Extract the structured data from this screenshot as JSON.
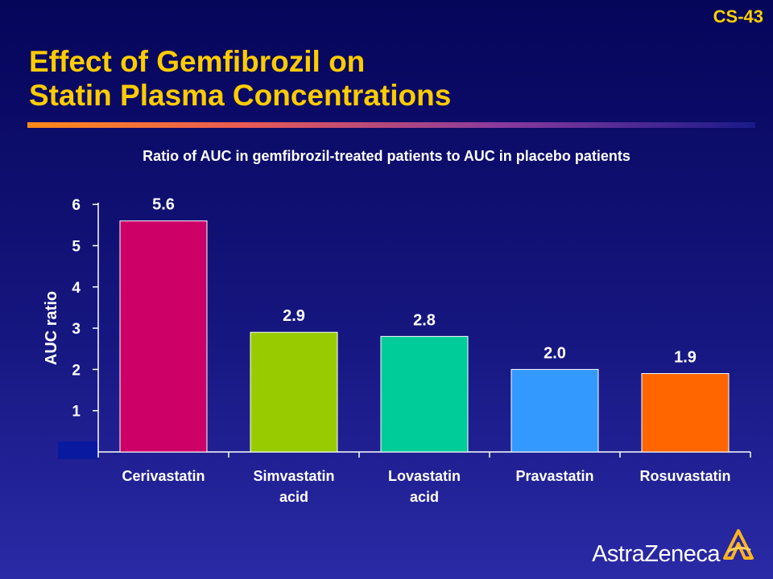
{
  "slide_number": "CS-43",
  "title_lines": [
    "Effect of Gemfibrozil on",
    "Statin Plasma Concentrations"
  ],
  "subtitle": "Ratio of AUC in gemfibrozil-treated patients to AUC in placebo patients",
  "logo_text": "AstraZeneca",
  "colors": {
    "title": "#ffcc00",
    "background": "#0a0a6e"
  },
  "chart_data": {
    "type": "bar",
    "categories": [
      [
        "Cerivastatin"
      ],
      [
        "Simvastatin",
        "acid"
      ],
      [
        "Lovastatin",
        "acid"
      ],
      [
        "Pravastatin"
      ],
      [
        "Rosuvastatin"
      ]
    ],
    "values": [
      5.6,
      2.9,
      2.8,
      2.0,
      1.9
    ],
    "data_labels": [
      "5.6",
      "2.9",
      "2.8",
      "2.0",
      "1.9"
    ],
    "bar_colors": [
      "#cc0066",
      "#99cc00",
      "#00cc99",
      "#3399ff",
      "#ff6600"
    ],
    "ylabel": "AUC ratio",
    "yticks": [
      1,
      2,
      3,
      4,
      5,
      6
    ],
    "ylim": [
      0,
      6
    ],
    "grid": false,
    "legend": "none"
  }
}
